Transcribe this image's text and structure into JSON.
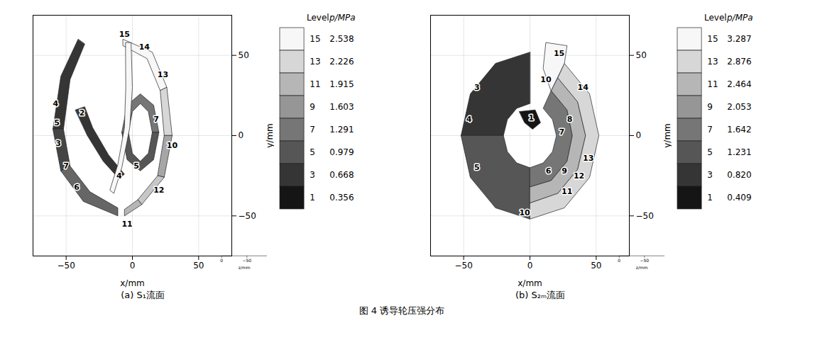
{
  "chart_data": [
    {
      "type": "contour",
      "title": "(a) S₁流面",
      "xlabel": "x/mm",
      "ylabel": "y/mm",
      "zlabel": "z/mm",
      "xlim": [
        -75,
        75
      ],
      "ylim": [
        -75,
        75
      ],
      "zlim": [
        0,
        -90
      ],
      "xticks": [
        -50,
        0,
        50
      ],
      "yticks": [
        -50,
        0,
        50
      ],
      "zticks": [
        -50,
        0
      ],
      "grid": true,
      "colorbar": {
        "header": [
          "Level",
          "p/MPa"
        ],
        "levels": [
          15,
          13,
          11,
          9,
          7,
          5,
          3,
          1
        ],
        "values": [
          2.538,
          2.226,
          1.915,
          1.603,
          1.291,
          0.979,
          0.668,
          0.356
        ]
      },
      "regions": [
        {
          "level": 3,
          "points": [
            [
              -41,
              60
            ],
            [
              -54,
              37
            ],
            [
              -60,
              4
            ],
            [
              -52,
              4
            ],
            [
              -47,
              35
            ],
            [
              -36,
              57
            ]
          ]
        },
        {
          "level": 4,
          "points": [
            [
              -60,
              4
            ],
            [
              -54,
              -22
            ],
            [
              -47,
              -19
            ],
            [
              -52,
              4
            ]
          ]
        },
        {
          "level": 6,
          "points": [
            [
              -54,
              -22
            ],
            [
              -37,
              -41
            ],
            [
              -11,
              -50
            ],
            [
              -11,
              -45
            ],
            [
              -32,
              -35
            ],
            [
              -47,
              -19
            ]
          ]
        },
        {
          "level": 15,
          "points": [
            [
              -7,
              60
            ],
            [
              15,
              52
            ],
            [
              26,
              30
            ],
            [
              21,
              28
            ],
            [
              11,
              48
            ],
            [
              -7,
              56
            ]
          ]
        },
        {
          "level": 13,
          "points": [
            [
              26,
              30
            ],
            [
              30,
              0
            ],
            [
              24,
              0
            ],
            [
              21,
              28
            ]
          ]
        },
        {
          "level": 10,
          "points": [
            [
              30,
              0
            ],
            [
              24,
              -26
            ],
            [
              19,
              -25
            ],
            [
              24,
              0
            ]
          ]
        },
        {
          "level": 12,
          "points": [
            [
              24,
              -26
            ],
            [
              7,
              -43
            ],
            [
              4,
              -40
            ],
            [
              19,
              -25
            ]
          ]
        },
        {
          "level": 11,
          "points": [
            [
              7,
              -43
            ],
            [
              -6,
              -50
            ],
            [
              -6,
              -46
            ],
            [
              4,
              -40
            ]
          ]
        },
        {
          "level": 7,
          "points": [
            [
              -8,
              2
            ],
            [
              -4,
              19
            ],
            [
              6,
              26
            ],
            [
              16,
              19
            ],
            [
              20,
              2
            ],
            [
              15,
              2
            ],
            [
              12,
              15
            ],
            [
              6,
              20
            ],
            [
              0,
              15
            ],
            [
              -3,
              2
            ]
          ]
        },
        {
          "level": 5,
          "points": [
            [
              20,
              2
            ],
            [
              16,
              -15
            ],
            [
              6,
              -22
            ],
            [
              -4,
              -15
            ],
            [
              -8,
              2
            ],
            [
              -3,
              2
            ],
            [
              0,
              -11
            ],
            [
              6,
              -16
            ],
            [
              12,
              -11
            ],
            [
              15,
              2
            ]
          ]
        },
        {
          "level": 3,
          "points": [
            [
              -43,
              16
            ],
            [
              -36,
              18
            ],
            [
              -30,
              5
            ],
            [
              -18,
              -12
            ],
            [
              -6,
              -24
            ],
            [
              -10,
              -27
            ],
            [
              -22,
              -16
            ],
            [
              -34,
              0
            ]
          ]
        },
        {
          "level": 15,
          "points": [
            [
              -5,
              58
            ],
            [
              -1,
              58
            ],
            [
              0,
              30
            ],
            [
              -2,
              5
            ],
            [
              -8,
              -20
            ],
            [
              -14,
              -36
            ],
            [
              -17,
              -34
            ],
            [
              -11,
              -18
            ],
            [
              -6,
              5
            ],
            [
              -5,
              30
            ]
          ]
        }
      ],
      "labels": [
        {
          "x": -58,
          "y": 20,
          "level": 4
        },
        {
          "x": -57,
          "y": 8,
          "level": 5
        },
        {
          "x": -56,
          "y": -5,
          "level": 3
        },
        {
          "x": -50,
          "y": -19,
          "level": 7
        },
        {
          "x": -42,
          "y": -32,
          "level": 6
        },
        {
          "x": -6,
          "y": 63,
          "level": 15
        },
        {
          "x": 9,
          "y": 55,
          "level": 14
        },
        {
          "x": 23,
          "y": 38,
          "level": 13
        },
        {
          "x": 30,
          "y": -6,
          "level": 10
        },
        {
          "x": 20,
          "y": -34,
          "level": 12
        },
        {
          "x": -4,
          "y": -55,
          "level": 11
        },
        {
          "x": 18,
          "y": 10,
          "level": 7
        },
        {
          "x": 3,
          "y": -19,
          "level": 5
        },
        {
          "x": -10,
          "y": -25,
          "level": 4
        },
        {
          "x": -38,
          "y": 14,
          "level": 2
        }
      ]
    },
    {
      "type": "contour",
      "title": "(b) S₂ₘ流面",
      "xlabel": "x/mm",
      "ylabel": "y/mm",
      "zlabel": "z/mm",
      "xlim": [
        -75,
        75
      ],
      "ylim": [
        -75,
        75
      ],
      "zlim": [
        0,
        -90
      ],
      "xticks": [
        -50,
        0,
        50
      ],
      "yticks": [
        -50,
        0,
        50
      ],
      "zticks": [
        -50,
        0
      ],
      "grid": true,
      "colorbar": {
        "header": [
          "Level",
          "p/MPa"
        ],
        "levels": [
          15,
          13,
          11,
          9,
          7,
          5,
          3,
          1
        ],
        "values": [
          3.287,
          2.876,
          2.464,
          2.053,
          1.642,
          1.231,
          0.82,
          0.409
        ],
        "value_labels": [
          "3.287",
          "2.876",
          "2.464",
          "2.053",
          "1.642",
          "1.231",
          "0.820",
          "0.409"
        ]
      },
      "regions": [
        {
          "level": 3,
          "points": [
            [
              0,
              52
            ],
            [
              -26,
              45
            ],
            [
              -45,
              26
            ],
            [
              -52,
              0
            ],
            [
              -20,
              0
            ],
            [
              -17,
              10
            ],
            [
              -10,
              17
            ],
            [
              0,
              20
            ]
          ]
        },
        {
          "level": 5,
          "points": [
            [
              -52,
              0
            ],
            [
              -45,
              -26
            ],
            [
              -26,
              -45
            ],
            [
              0,
              -52
            ],
            [
              0,
              -20
            ],
            [
              -10,
              -17
            ],
            [
              -17,
              -10
            ],
            [
              -20,
              0
            ]
          ]
        },
        {
          "level": 1,
          "points": [
            [
              -8,
              15
            ],
            [
              4,
              16
            ],
            [
              8,
              8
            ],
            [
              2,
              4
            ],
            [
              -4,
              8
            ]
          ]
        },
        {
          "level": 7,
          "points": [
            [
              0,
              -20
            ],
            [
              10,
              -17
            ],
            [
              17,
              -10
            ],
            [
              20,
              0
            ],
            [
              17,
              10
            ],
            [
              10,
              17
            ],
            [
              16,
              28
            ],
            [
              28,
              16
            ],
            [
              32,
              0
            ],
            [
              28,
              -16
            ],
            [
              16,
              -28
            ],
            [
              0,
              -32
            ]
          ]
        },
        {
          "level": 11,
          "points": [
            [
              0,
              -32
            ],
            [
              16,
              -28
            ],
            [
              28,
              -16
            ],
            [
              32,
              0
            ],
            [
              28,
              16
            ],
            [
              16,
              28
            ],
            [
              21,
              36
            ],
            [
              36,
              21
            ],
            [
              42,
              0
            ],
            [
              36,
              -21
            ],
            [
              21,
              -36
            ],
            [
              0,
              -42
            ]
          ]
        },
        {
          "level": 13,
          "points": [
            [
              0,
              -42
            ],
            [
              21,
              -36
            ],
            [
              36,
              -21
            ],
            [
              42,
              0
            ],
            [
              36,
              21
            ],
            [
              21,
              36
            ],
            [
              26,
              45
            ],
            [
              45,
              26
            ],
            [
              52,
              0
            ],
            [
              45,
              -26
            ],
            [
              26,
              -45
            ],
            [
              0,
              -52
            ]
          ]
        },
        {
          "level": 15,
          "points": [
            [
              16,
              28
            ],
            [
              26,
              45
            ],
            [
              28,
              56
            ],
            [
              12,
              58
            ],
            [
              10,
              42
            ]
          ]
        }
      ],
      "labels": [
        {
          "x": -40,
          "y": 30,
          "level": 3
        },
        {
          "x": -46,
          "y": 10,
          "level": 4
        },
        {
          "x": -40,
          "y": -20,
          "level": 5
        },
        {
          "x": 1,
          "y": 11,
          "level": 1
        },
        {
          "x": 22,
          "y": 51,
          "level": 15
        },
        {
          "x": 40,
          "y": 30,
          "level": 14
        },
        {
          "x": 12,
          "y": 35,
          "level": 10
        },
        {
          "x": 30,
          "y": 10,
          "level": 8
        },
        {
          "x": 24,
          "y": 2,
          "level": 7
        },
        {
          "x": 14,
          "y": -22,
          "level": 6
        },
        {
          "x": 26,
          "y": -22,
          "level": 9
        },
        {
          "x": 44,
          "y": -14,
          "level": 13
        },
        {
          "x": 37,
          "y": -25,
          "level": 12
        },
        {
          "x": 28,
          "y": -35,
          "level": 11
        },
        {
          "x": -4,
          "y": -48,
          "level": 10
        }
      ]
    }
  ],
  "caption": "图 4 诱导轮压强分布"
}
